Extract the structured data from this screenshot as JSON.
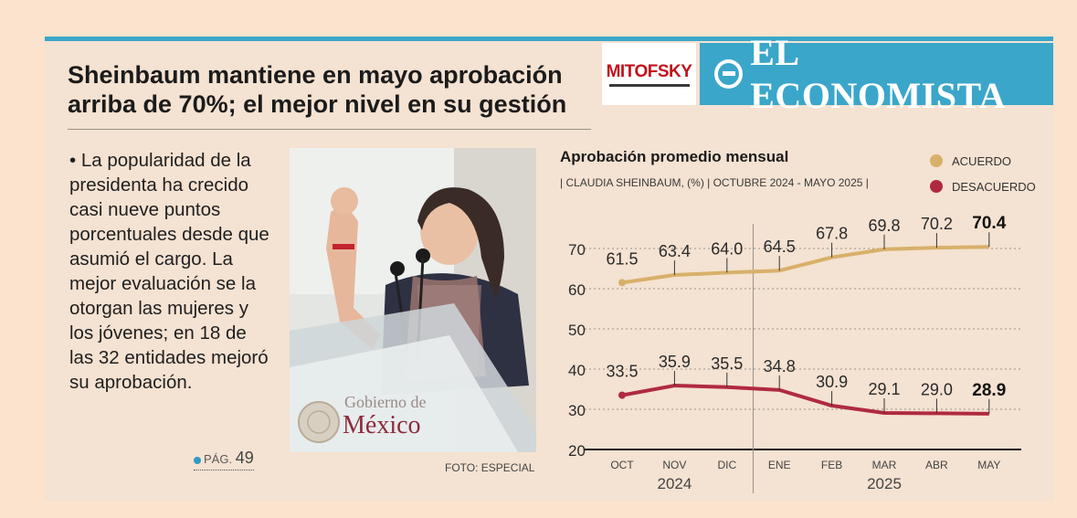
{
  "headline": {
    "line1": "Sheinbaum mantiene en mayo aprobación",
    "line2": "arriba de 70%; el mejor nivel en su gestión"
  },
  "logos": {
    "mitofsky": "MITOFSKY",
    "economista": "EL ECONOMISTA"
  },
  "body_text": "• La popularidad de la presidenta ha crecido casi nueve puntos porcentuales desde que asumió el cargo. La mejor evaluación se la otorgan las mujeres y los jóvenes; en 18 de las 32 entidades mejoró su aprobación.",
  "page_ref": {
    "label": "PÁG.",
    "number": "49"
  },
  "photo": {
    "sign_line1": "Gobierno de",
    "sign_line2": "México",
    "credit": "FOTO: ESPECIAL"
  },
  "colors": {
    "accent_blue": "#3aa6c9",
    "acuerdo": "#d8b069",
    "desacuerdo": "#b02a3f"
  },
  "chart_data": {
    "type": "line",
    "title": "Aprobación promedio mensual",
    "subtitle": "| CLAUDIA SHEINBAUM, (%) | OCTUBRE 2024 - MAYO 2025 |",
    "categories": [
      "OCT",
      "NOV",
      "DIC",
      "ENE",
      "FEB",
      "MAR",
      "ABR",
      "MAY"
    ],
    "year_labels": [
      {
        "label": "2024",
        "categories": [
          "OCT",
          "NOV",
          "DIC"
        ]
      },
      {
        "label": "2025",
        "categories": [
          "ENE",
          "FEB",
          "MAR",
          "ABR",
          "MAY"
        ]
      }
    ],
    "series": [
      {
        "name": "ACUERDO",
        "color": "#d8b069",
        "values": [
          61.5,
          63.4,
          64.0,
          64.5,
          67.8,
          69.8,
          70.2,
          70.4
        ],
        "labels": [
          "61.5",
          "63.4",
          "64.0",
          "64.5",
          "67.8",
          "69.8",
          "70.2",
          "70.4"
        ]
      },
      {
        "name": "DESACUERDO",
        "color": "#b02a3f",
        "values": [
          33.5,
          35.9,
          35.5,
          34.8,
          30.9,
          29.1,
          29.0,
          28.9
        ],
        "labels": [
          "33.5",
          "35.9",
          "35.5",
          "34.8",
          "30.9",
          "29.1",
          "29.0",
          "28.9"
        ]
      }
    ],
    "yticks": [
      "20",
      "30",
      "40",
      "50",
      "60",
      "70"
    ],
    "ylim": [
      20,
      75
    ],
    "grid": true,
    "legend_position": "top-right"
  }
}
